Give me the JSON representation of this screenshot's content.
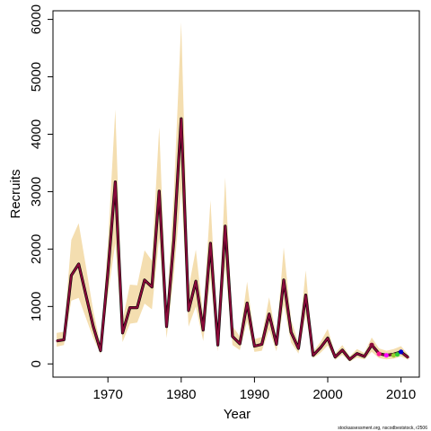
{
  "chart_data": {
    "type": "line",
    "xlabel": "Year",
    "ylabel": "Recruits",
    "xlim": [
      1962.5,
      2012.5
    ],
    "ylim": [
      -230,
      6150
    ],
    "x_ticks": [
      1970,
      1980,
      1990,
      2000,
      2010
    ],
    "y_ticks": [
      0,
      1000,
      2000,
      3000,
      4000,
      5000,
      6000
    ],
    "grid": false,
    "legend": "none",
    "credit": "stockassessment.org, nscodbeststock, r2506",
    "colors": {
      "band": "#f4deb0",
      "series_main": "#8b0a3a",
      "series_overlay": "#000000",
      "retro_points": [
        "#8b0a3a",
        "#ff1493",
        "#ff00ff",
        "#9acd32",
        "#32cd32",
        "#0000cd"
      ]
    },
    "years": [
      1963,
      1964,
      1965,
      1966,
      1967,
      1968,
      1969,
      1970,
      1971,
      1972,
      1973,
      1974,
      1975,
      1976,
      1977,
      1978,
      1979,
      1980,
      1981,
      1982,
      1983,
      1984,
      1985,
      1986,
      1987,
      1988,
      1989,
      1990,
      1991,
      1992,
      1993,
      1994,
      1995,
      1996,
      1997,
      1998,
      1999,
      2000,
      2001,
      2002,
      2003,
      2004,
      2005,
      2006,
      2007,
      2008,
      2009,
      2010,
      2011
    ],
    "series": [
      {
        "name": "",
        "values": [
          400,
          420,
          1540,
          1740,
          1200,
          650,
          230,
          1600,
          3170,
          540,
          980,
          980,
          1460,
          1340,
          3010,
          650,
          2150,
          4270,
          930,
          1440,
          590,
          2100,
          330,
          2400,
          480,
          350,
          1060,
          310,
          340,
          870,
          340,
          1460,
          550,
          270,
          1200,
          150,
          280,
          450,
          120,
          240,
          80,
          180,
          130,
          330,
          180,
          150,
          170,
          210,
          110
        ]
      }
    ],
    "confidence_band": {
      "lower": [
        300,
        330,
        1100,
        1150,
        800,
        450,
        170,
        1200,
        2100,
        380,
        700,
        720,
        1050,
        950,
        2200,
        450,
        1550,
        3050,
        650,
        1000,
        400,
        1500,
        220,
        1700,
        330,
        240,
        740,
        210,
        230,
        600,
        220,
        1030,
        370,
        180,
        850,
        100,
        190,
        320,
        70,
        160,
        40,
        110,
        80,
        210,
        100,
        80,
        90,
        130,
        70
      ],
      "upper": [
        540,
        560,
        2160,
        2450,
        1700,
        920,
        320,
        2100,
        4430,
        760,
        1380,
        1370,
        1980,
        1800,
        4120,
        890,
        2950,
        5950,
        1320,
        1990,
        830,
        2850,
        460,
        3250,
        660,
        480,
        1430,
        430,
        470,
        1160,
        470,
        2030,
        760,
        370,
        1630,
        210,
        380,
        610,
        180,
        330,
        130,
        260,
        190,
        460,
        270,
        230,
        260,
        310,
        160
      ]
    },
    "retro_endpoints": [
      {
        "x": 2006,
        "y": 330
      },
      {
        "x": 2007,
        "y": 175
      },
      {
        "x": 2008,
        "y": 150
      },
      {
        "x": 2009,
        "y": 150
      },
      {
        "x": 2009.5,
        "y": 165
      },
      {
        "x": 2010,
        "y": 210
      }
    ]
  }
}
